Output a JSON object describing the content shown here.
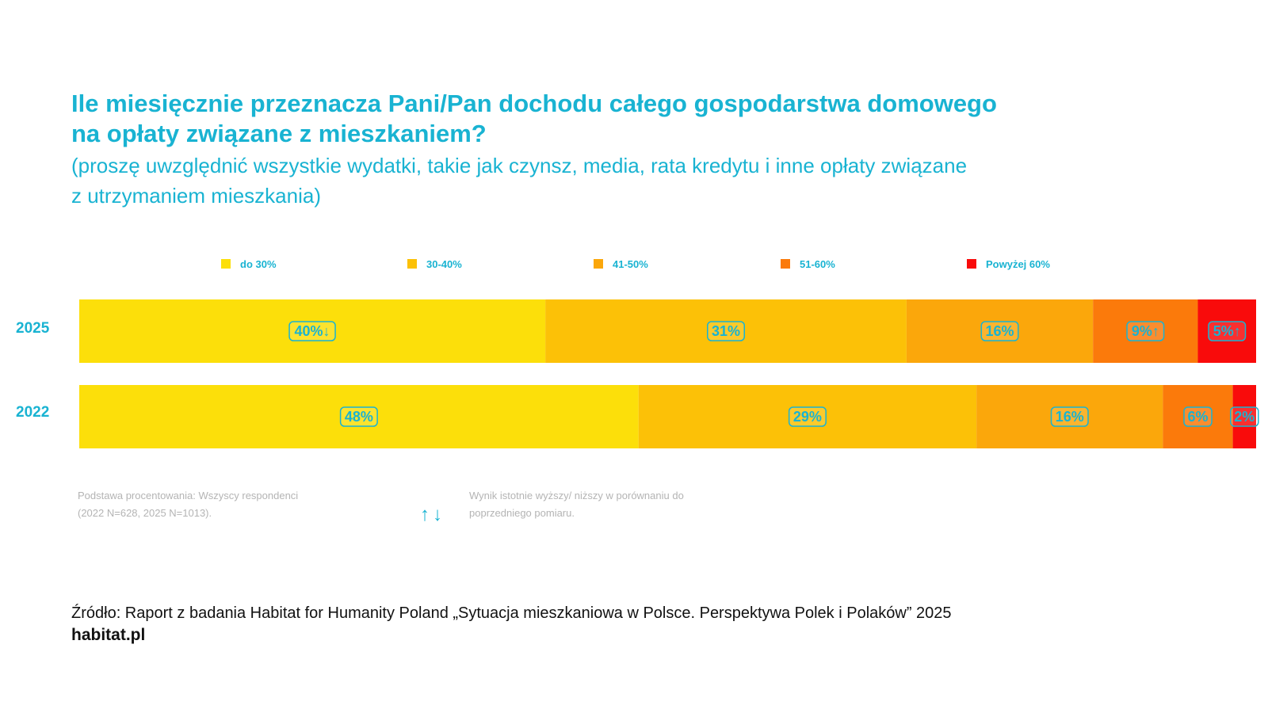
{
  "title_lines": [
    "Ile miesięcznie przeznacza Pani/Pan dochodu całego gospodarstwa domowego",
    "na opłaty związane  z mieszkaniem?"
  ],
  "subtitle_lines": [
    "(proszę uwzględnić wszystkie wydatki, takie jak czynsz, media, rata kredytu i inne opłaty związane",
    "z utrzymaniem mieszkania)"
  ],
  "chart_data": {
    "type": "bar",
    "orientation": "horizontal",
    "stacked": "100%",
    "categories": [
      "2025",
      "2022"
    ],
    "series": [
      {
        "name": "do 30%",
        "color": "#fcdf0a",
        "values": [
          40,
          48
        ],
        "labels": [
          "40%↓",
          "48%"
        ]
      },
      {
        "name": "30-40%",
        "color": "#fcc107",
        "values": [
          31,
          29
        ],
        "labels": [
          "31%",
          "29%"
        ]
      },
      {
        "name": "41-50%",
        "color": "#fba70b",
        "values": [
          16,
          16
        ],
        "labels": [
          "16%",
          "16%"
        ]
      },
      {
        "name": "51-60%",
        "color": "#fb7a0b",
        "values": [
          9,
          6
        ],
        "labels": [
          "9%↑",
          "6%"
        ]
      },
      {
        "name": "Powyżej 60%",
        "color": "#f90b0b",
        "values": [
          5,
          2
        ],
        "labels": [
          "5%↑",
          "2%"
        ]
      }
    ],
    "legend_position": "top",
    "label_color": "#19b3d2",
    "grid": false
  },
  "footnote": {
    "base_lines": [
      "Podstawa procentowania: Wszyscy respondenci",
      "(2022 N=628, 2025 N=1013)."
    ],
    "arrows": "↑↓",
    "significance_lines": [
      "Wynik istotnie wyższy/ niższy w porównaniu do",
      "poprzedniego pomiaru."
    ]
  },
  "source": "Źródło: Raport z badania Habitat for Humanity Poland „Sytuacja mieszkaniowa w Polsce. Perspektywa Polek i Polaków” 2025",
  "site": "habitat.pl",
  "colors": {
    "accent": "#19b3d2",
    "text": "#111111",
    "muted": "#b4b4b4"
  }
}
